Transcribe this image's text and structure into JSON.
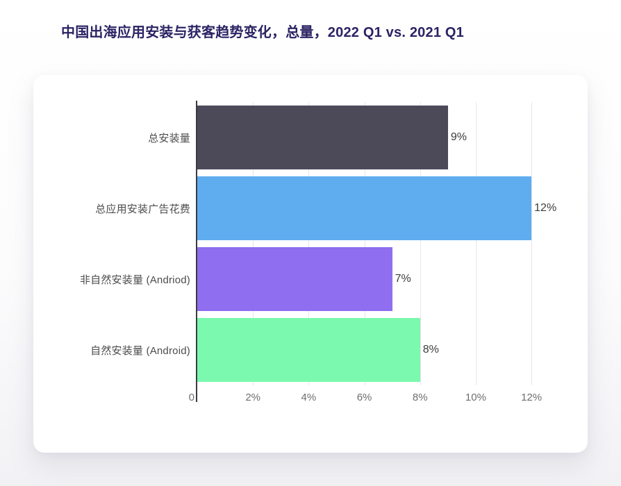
{
  "page": {
    "title": "中国出海应用安装与获客趋势变化，总量，2022 Q1 vs. 2021 Q1",
    "title_color": "#2b2364",
    "card_background": "#ffffff"
  },
  "chart_data": {
    "type": "bar",
    "orientation": "horizontal",
    "title": "中国出海应用安装与获客趋势变化，总量，2022 Q1 vs. 2021 Q1",
    "categories": [
      "总安装量",
      "总应用安装广告花费",
      "非自然安装量 (Andriod)",
      "自然安装量 (Android)"
    ],
    "values": [
      9,
      12,
      7,
      8
    ],
    "value_labels": [
      "9%",
      "12%",
      "7%",
      "8%"
    ],
    "bar_colors": [
      "#4c4a59",
      "#5fadee",
      "#8f6ef0",
      "#7bf9ae"
    ],
    "x_axis": {
      "ticks": [
        0,
        2,
        4,
        6,
        8,
        10,
        12
      ],
      "tick_labels": [
        "0",
        "2%",
        "4%",
        "6%",
        "8%",
        "10%",
        "12%"
      ],
      "max": 12.62,
      "unit": "%"
    },
    "xlim": [
      0,
      12.62
    ],
    "grid": "vertical-only",
    "legend": "none",
    "gridline_color": "#e7e7ea",
    "axis_line_color": "#3a3a43"
  }
}
